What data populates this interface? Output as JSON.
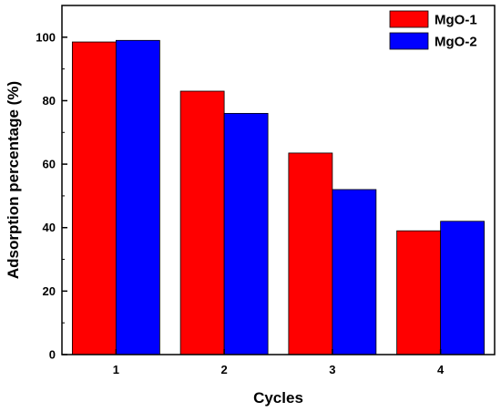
{
  "chart_data": {
    "type": "bar",
    "title": "",
    "xlabel": "Cycles",
    "ylabel": "Adsorption percentage (%)",
    "categories": [
      "1",
      "2",
      "3",
      "4"
    ],
    "series": [
      {
        "name": "MgO-1",
        "color": "#ff0000",
        "values": [
          98.5,
          83,
          63.5,
          39
        ]
      },
      {
        "name": "MgO-2",
        "color": "#0000ff",
        "values": [
          99,
          76,
          52,
          42
        ]
      }
    ],
    "ylim": [
      0,
      110
    ],
    "yticks": [
      0,
      20,
      40,
      60,
      80,
      100
    ],
    "grid": false,
    "legend_position": "top-right"
  }
}
